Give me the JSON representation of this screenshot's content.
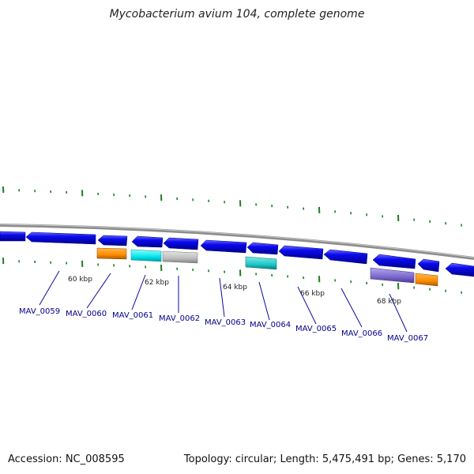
{
  "title": "Mycobacterium avium 104, complete genome",
  "accession": "Accession: NC_008595",
  "summary": "Topology: circular; Length: 5,475,491 bp; Genes: 5,170",
  "ruler_labels": [
    "60 kbp",
    "62 kbp",
    "64 kbp",
    "66 kbp",
    "68 kbp"
  ],
  "gene_labels": [
    "MAV_0059",
    "MAV_0060",
    "MAV_0061",
    "MAV_0062",
    "MAV_0063",
    "MAV_0064",
    "MAV_0065",
    "MAV_0066",
    "MAV_0067"
  ],
  "colors": {
    "backbone": "#8c8c8c",
    "cds": "#0a0af0",
    "orange": "#ff8c00",
    "cyan": "#00e5ee",
    "gray": "#bdbdbd",
    "teal": "#1ec8c8",
    "purple": "#7b68cc",
    "tick": "#1e7d1e",
    "label": "#00008b"
  }
}
